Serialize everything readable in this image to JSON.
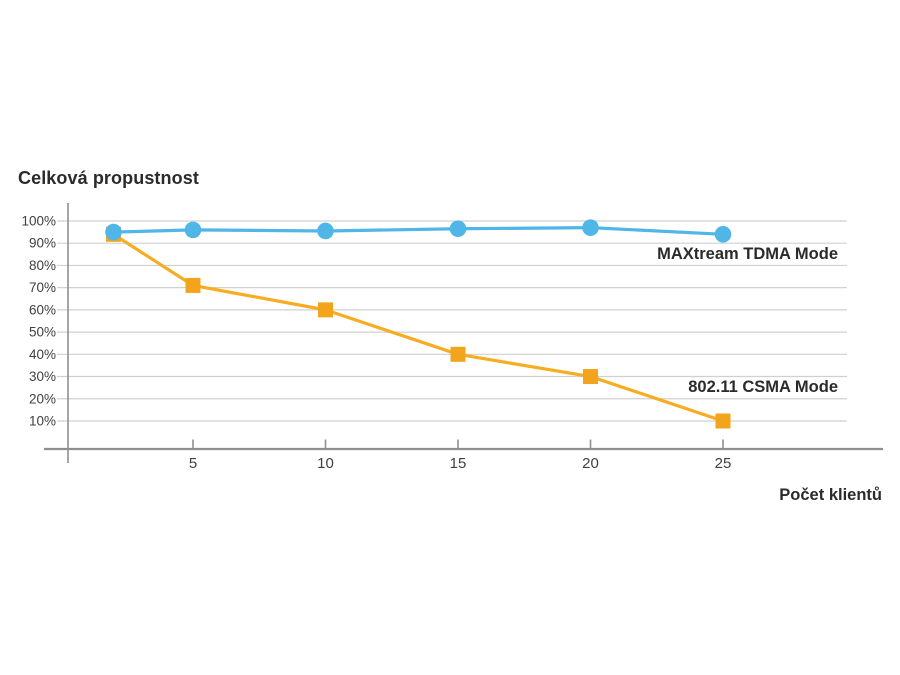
{
  "page": {
    "background": "#ffffff"
  },
  "chart_data": {
    "type": "line",
    "title": "Celková propustnost",
    "xlabel": "Počet klientů",
    "ylabel": "",
    "x": [
      2,
      5,
      10,
      15,
      20,
      25
    ],
    "x_tick_labels": [
      "5",
      "10",
      "15",
      "20",
      "25"
    ],
    "x_ticks": [
      5,
      10,
      15,
      20,
      25
    ],
    "y_ticks": [
      100,
      90,
      80,
      70,
      60,
      50,
      40,
      30,
      20,
      10
    ],
    "y_tick_suffix": "%",
    "ylim": [
      0,
      105
    ],
    "xlim": [
      0,
      30
    ],
    "grid": true,
    "legend_position": "inline-right",
    "series": [
      {
        "name": "MAXtream TDMA Mode",
        "marker": "circle",
        "line_color": "#4fb6e7",
        "marker_color": "#4fb6e7",
        "values": [
          95,
          96,
          95.5,
          96.5,
          97,
          94
        ]
      },
      {
        "name": "802.11 CSMA Mode",
        "marker": "square",
        "line_color": "#f7ac21",
        "marker_color": "#f2a51c",
        "values": [
          94,
          71,
          60,
          40,
          30,
          10
        ]
      }
    ],
    "colors": {
      "grid": "#d0d0d0",
      "axis": "#8f8f8f",
      "tick_text": "#404040",
      "label_text": "#2b2b2b"
    }
  }
}
